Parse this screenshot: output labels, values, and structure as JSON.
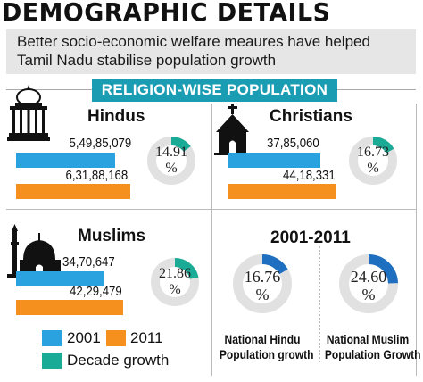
{
  "header": {
    "title": "DEMOGRAPHIC DETAILS",
    "subtitle_line1": "Better socio-economic welfare meaures have helped",
    "subtitle_line2": "Tamil Nadu stabilise population growth",
    "banner": "RELIGION-WISE POPULATION"
  },
  "colors": {
    "y2001": "#2aa2e0",
    "y2011": "#f5901e",
    "growth": "#1aab96",
    "national": "#1e6fbf",
    "ring_bg": "#e1e1e1"
  },
  "legend": {
    "y2001": "2001",
    "y2011": "2011",
    "growth": "Decade growth"
  },
  "national": {
    "heading": "2001-2011",
    "hindu": {
      "value": "16.76",
      "unit": "%",
      "label_line1": "National Hindu",
      "label_line2": "Population growth",
      "fraction": 0.1676
    },
    "muslim": {
      "value": "24.60",
      "unit": "%",
      "label_line1": "National Muslim",
      "label_line2": "Population Growth",
      "fraction": 0.246
    }
  },
  "chart_data": {
    "type": "bar",
    "title": "RELIGION-WISE POPULATION",
    "series": [
      {
        "name": "2001",
        "values": [
          54985079,
          3785060,
          3470647
        ]
      },
      {
        "name": "2011",
        "values": [
          63188168,
          4418331,
          4229479
        ]
      }
    ],
    "categories": [
      "Hindus",
      "Christians",
      "Muslims"
    ],
    "groups": [
      {
        "name": "Hindus",
        "v2001": 54985079,
        "v2011": 63188168,
        "label2001": "5,49,85,079",
        "label2011": "6,31,88,168",
        "growth": "14.91",
        "growth_unit": "%",
        "growth_fraction": 0.1491
      },
      {
        "name": "Christians",
        "v2001": 3785060,
        "v2011": 4418331,
        "label2001": "37,85,060",
        "label2011": "44,18,331",
        "growth": "16.73",
        "growth_unit": "%",
        "growth_fraction": 0.1673
      },
      {
        "name": "Muslims",
        "v2001": 3470647,
        "v2011": 4229479,
        "label2001": "34,70,647",
        "label2011": "42,29,479",
        "growth": "21.86",
        "growth_unit": "%",
        "growth_fraction": 0.2186
      }
    ],
    "national_growth": [
      {
        "name": "National Hindu Population growth",
        "value": 16.76
      },
      {
        "name": "National Muslim Population Growth",
        "value": 24.6
      }
    ],
    "bars_scaled_per_group": true
  }
}
